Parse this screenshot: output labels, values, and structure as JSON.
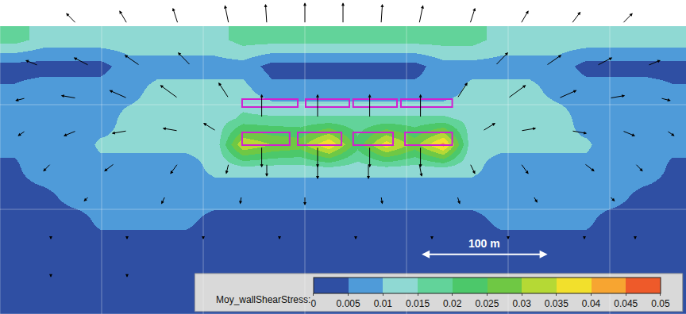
{
  "chart_data": {
    "type": "heatmap",
    "xlim": [
      0,
      540
    ],
    "ylim": [
      0,
      240
    ],
    "xticks": [
      0,
      80,
      160,
      240,
      320,
      400,
      480
    ],
    "yticks": [
      0,
      80,
      160,
      240
    ],
    "grid": true,
    "tick_labels": false,
    "x": [
      11.25,
      33.75,
      56.25,
      78.75,
      101.25,
      123.75,
      146.25,
      168.75,
      191.25,
      213.75,
      236.25,
      258.75,
      281.25,
      303.75,
      326.25,
      348.75,
      371.25,
      393.75,
      416.25,
      438.75,
      461.25,
      483.75,
      506.25,
      528.75
    ],
    "y": [
      10,
      30,
      50,
      70,
      90,
      110,
      130,
      150,
      170,
      190,
      210
    ],
    "cells": [
      [
        0.002,
        0.002,
        0.002,
        0.002,
        0.002,
        0.002,
        0.002,
        0.002,
        0.002,
        0.002,
        0.002,
        0.002,
        0.002,
        0.002,
        0.002,
        0.002,
        0.002,
        0.002,
        0.002,
        0.002,
        0.002,
        0.002,
        0.002,
        0.002
      ],
      [
        0.002,
        0.002,
        0.002,
        0.002,
        0.002,
        0.002,
        0.002,
        0.002,
        0.002,
        0.002,
        0.002,
        0.002,
        0.002,
        0.002,
        0.002,
        0.002,
        0.002,
        0.002,
        0.002,
        0.002,
        0.002,
        0.002,
        0.002,
        0.002
      ],
      [
        0.002,
        0.002,
        0.002,
        0.002,
        0.002,
        0.002,
        0.002,
        0.002,
        0.002,
        0.002,
        0.002,
        0.002,
        0.002,
        0.002,
        0.002,
        0.002,
        0.002,
        0.002,
        0.002,
        0.002,
        0.002,
        0.002,
        0.002,
        0.002
      ],
      [
        0.002,
        0.002,
        0.002,
        0.006,
        0.006,
        0.006,
        0.006,
        0.003,
        0.003,
        0.003,
        0.003,
        0.003,
        0.003,
        0.003,
        0.003,
        0.003,
        0.003,
        0.006,
        0.006,
        0.006,
        0.006,
        0.002,
        0.002,
        0.002
      ],
      [
        0.003,
        0.003,
        0.007,
        0.007,
        0.007,
        0.007,
        0.007,
        0.007,
        0.007,
        0.007,
        0.007,
        0.007,
        0.007,
        0.007,
        0.007,
        0.007,
        0.007,
        0.007,
        0.007,
        0.007,
        0.007,
        0.007,
        0.003,
        0.003
      ],
      [
        0.004,
        0.008,
        0.008,
        0.008,
        0.008,
        0.008,
        0.008,
        0.011,
        0.011,
        0.011,
        0.011,
        0.011,
        0.011,
        0.011,
        0.011,
        0.011,
        0.011,
        0.008,
        0.008,
        0.008,
        0.008,
        0.008,
        0.008,
        0.004
      ],
      [
        0.006,
        0.006,
        0.006,
        0.011,
        0.011,
        0.011,
        0.011,
        0.011,
        0.035,
        0.03,
        0.028,
        0.04,
        0.022,
        0.038,
        0.028,
        0.042,
        0.011,
        0.011,
        0.011,
        0.011,
        0.011,
        0.006,
        0.006,
        0.006
      ],
      [
        0.007,
        0.007,
        0.007,
        0.007,
        0.012,
        0.012,
        0.012,
        0.012,
        0.016,
        0.016,
        0.016,
        0.016,
        0.016,
        0.016,
        0.016,
        0.016,
        0.013,
        0.013,
        0.013,
        0.013,
        0.007,
        0.007,
        0.007,
        0.007
      ],
      [
        0.006,
        0.008,
        0.008,
        0.008,
        0.008,
        0.012,
        0.012,
        0.012,
        0.012,
        0.007,
        0.007,
        0.007,
        0.007,
        0.007,
        0.007,
        0.007,
        0.012,
        0.012,
        0.012,
        0.008,
        0.008,
        0.008,
        0.008,
        0.006
      ],
      [
        0.003,
        0.003,
        0.003,
        0.003,
        0.008,
        0.008,
        0.008,
        0.008,
        0.008,
        0.003,
        0.003,
        0.003,
        0.003,
        0.003,
        0.003,
        0.008,
        0.008,
        0.008,
        0.008,
        0.008,
        0.003,
        0.003,
        0.003,
        0.003
      ],
      [
        0.017,
        0.013,
        0.013,
        0.013,
        0.013,
        0.013,
        0.013,
        0.013,
        0.017,
        0.017,
        0.017,
        0.017,
        0.017,
        0.017,
        0.017,
        0.017,
        0.017,
        0.013,
        0.013,
        0.013,
        0.013,
        0.013,
        0.013,
        0.013
      ]
    ],
    "color_range": [
      0,
      0.05
    ],
    "color_ticks": [
      0,
      0.005,
      0.01,
      0.015,
      0.02,
      0.025,
      0.03,
      0.035,
      0.04,
      0.045,
      0.05
    ],
    "colors": [
      "#2f4fa3",
      "#4f9bd9",
      "#8fd9d3",
      "#62d39a",
      "#4cc86a",
      "#6fc844",
      "#b5d935",
      "#f2e02c",
      "#f7a531",
      "#ee5a2a"
    ],
    "colorbar_title": "Moy_wallShearStress:",
    "scale_bar": {
      "label": "100 m",
      "length": 100
    },
    "structures": [
      [
        190.6,
        158.2,
        234.4,
        164.2
      ],
      [
        240.6,
        158.2,
        275,
        164.2
      ],
      [
        278,
        158.2,
        312.5,
        164.2
      ],
      [
        315.6,
        158.2,
        356,
        164.2
      ],
      [
        190.6,
        129.1,
        228,
        138.8
      ],
      [
        234.4,
        129.1,
        268.8,
        138.8
      ],
      [
        278,
        129.1,
        309.4,
        138.8
      ],
      [
        318.8,
        129.1,
        356,
        138.8
      ]
    ],
    "arrows": [
      [
        60,
        222,
        -8,
        8
      ],
      [
        100,
        222,
        -6,
        10
      ],
      [
        140,
        222,
        -4,
        12
      ],
      [
        180,
        222,
        -3,
        14
      ],
      [
        210,
        222,
        -1,
        15
      ],
      [
        240,
        222,
        0,
        16
      ],
      [
        270,
        222,
        0,
        16
      ],
      [
        300,
        222,
        1,
        15
      ],
      [
        330,
        222,
        3,
        14
      ],
      [
        370,
        222,
        4,
        12
      ],
      [
        410,
        222,
        6,
        10
      ],
      [
        450,
        222,
        7,
        9
      ],
      [
        490,
        222,
        8,
        8
      ],
      [
        30,
        190,
        -10,
        4
      ],
      [
        70,
        190,
        -12,
        6
      ],
      [
        110,
        190,
        -12,
        8
      ],
      [
        150,
        190,
        -10,
        10
      ],
      [
        390,
        190,
        10,
        10
      ],
      [
        430,
        190,
        12,
        8
      ],
      [
        470,
        190,
        12,
        6
      ],
      [
        510,
        190,
        10,
        4
      ],
      [
        20,
        165,
        -8,
        -2
      ],
      [
        60,
        165,
        -12,
        2
      ],
      [
        100,
        165,
        -14,
        6
      ],
      [
        140,
        165,
        -14,
        10
      ],
      [
        180,
        165,
        -8,
        12
      ],
      [
        360,
        165,
        8,
        12
      ],
      [
        400,
        165,
        14,
        10
      ],
      [
        440,
        165,
        14,
        6
      ],
      [
        480,
        165,
        12,
        2
      ],
      [
        520,
        165,
        8,
        -2
      ],
      [
        206,
        150,
        0,
        18
      ],
      [
        250,
        150,
        0,
        18
      ],
      [
        291,
        150,
        0,
        18
      ],
      [
        331,
        150,
        0,
        18
      ],
      [
        206,
        128,
        0,
        -16
      ],
      [
        250,
        128,
        0,
        -16
      ],
      [
        291,
        128,
        0,
        -16
      ],
      [
        331,
        128,
        0,
        -16
      ],
      [
        20,
        140,
        -6,
        -4
      ],
      [
        60,
        140,
        -10,
        -4
      ],
      [
        100,
        140,
        -12,
        -2
      ],
      [
        140,
        140,
        -12,
        2
      ],
      [
        170,
        140,
        -10,
        6
      ],
      [
        380,
        140,
        10,
        6
      ],
      [
        410,
        140,
        12,
        2
      ],
      [
        450,
        140,
        12,
        -2
      ],
      [
        490,
        140,
        10,
        -4
      ],
      [
        525,
        140,
        6,
        -4
      ],
      [
        40,
        115,
        -6,
        -6
      ],
      [
        90,
        115,
        -8,
        -6
      ],
      [
        140,
        115,
        -6,
        -8
      ],
      [
        180,
        115,
        -2,
        -8
      ],
      [
        210,
        115,
        0,
        -10
      ],
      [
        250,
        115,
        0,
        -12
      ],
      [
        290,
        115,
        0,
        -12
      ],
      [
        330,
        115,
        2,
        -10
      ],
      [
        370,
        115,
        4,
        -8
      ],
      [
        410,
        115,
        6,
        -8
      ],
      [
        460,
        115,
        8,
        -6
      ],
      [
        500,
        115,
        6,
        -6
      ],
      [
        70,
        90,
        -4,
        -4
      ],
      [
        130,
        90,
        -3,
        -6
      ],
      [
        190,
        90,
        -1,
        -6
      ],
      [
        240,
        90,
        0,
        -7
      ],
      [
        300,
        90,
        1,
        -6
      ],
      [
        360,
        90,
        2,
        -6
      ],
      [
        420,
        90,
        3,
        -5
      ],
      [
        480,
        90,
        4,
        -4
      ],
      [
        40,
        60,
        0,
        -3
      ],
      [
        100,
        60,
        0,
        -3
      ],
      [
        160,
        60,
        0,
        -3
      ],
      [
        220,
        60,
        0,
        -3
      ],
      [
        280,
        60,
        0,
        -3
      ],
      [
        340,
        60,
        0,
        -3
      ],
      [
        400,
        60,
        0,
        -3
      ],
      [
        460,
        60,
        0,
        -3
      ],
      [
        500,
        60,
        0,
        -3
      ],
      [
        40,
        30,
        0,
        -2
      ],
      [
        100,
        30,
        0,
        -2
      ]
    ]
  }
}
